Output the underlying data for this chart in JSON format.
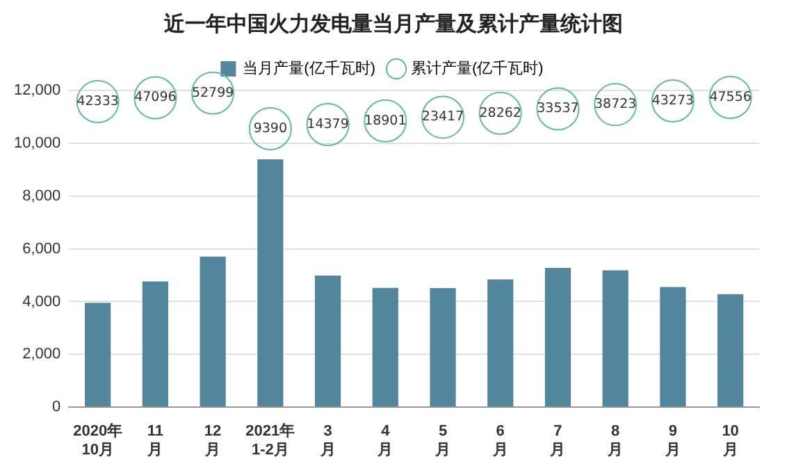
{
  "chart_data": {
    "type": "bar",
    "title": "近一年中国火力发电量当月产量及累计产量统计图",
    "categories": [
      "2020年\n10月",
      "11\n月",
      "12\n月",
      "2021年\n1-2月",
      "3\n月",
      "4\n月",
      "5\n月",
      "6\n月",
      "7\n月",
      "8\n月",
      "9\n月",
      "10\n月"
    ],
    "series": [
      {
        "name": "当月产量(亿千瓦时)",
        "color": "#53869c",
        "values": [
          3950,
          4763,
          5703,
          9390,
          4989,
          4522,
          4516,
          4845,
          5275,
          5186,
          4550,
          4283
        ]
      },
      {
        "name": "累计产量(亿千瓦时)",
        "type": "scatter",
        "color": "#5fb8a8",
        "axis": "y2",
        "values": [
          42333,
          47096,
          52799,
          9390,
          14379,
          18901,
          23417,
          28262,
          33537,
          38723,
          43273,
          47556
        ],
        "value_labels": [
          "42333",
          "47096",
          "52799",
          "9390",
          "14379",
          "18901",
          "23417",
          "28262",
          "33537",
          "38723",
          "43273",
          "47556"
        ]
      }
    ],
    "ylim": [
      0,
      12000
    ],
    "yticks": [
      {
        "value": 0,
        "label": "0"
      },
      {
        "value": 2000,
        "label": "2,000"
      },
      {
        "value": 4000,
        "label": "4,000"
      },
      {
        "value": 6000,
        "label": "6,000"
      },
      {
        "value": 8000,
        "label": "8,000"
      },
      {
        "value": 10000,
        "label": "10,000"
      },
      {
        "value": 12000,
        "label": "12,000"
      }
    ],
    "y2lim": [
      -330000,
      56000
    ],
    "grid": "y",
    "legend": "top",
    "marker": "circle"
  }
}
